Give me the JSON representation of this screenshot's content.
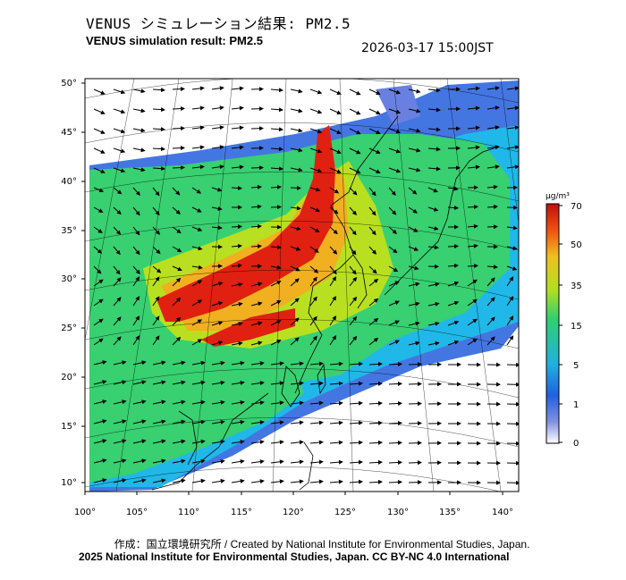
{
  "header": {
    "title_jp": "VENUS シミュレーション結果: PM2.5",
    "title_en": "VENUS simulation result: PM2.5",
    "timestamp": "2026-03-17 15:00JST"
  },
  "map": {
    "lat_labels": [
      "50°",
      "45°",
      "40°",
      "35°",
      "30°",
      "25°",
      "20°",
      "15°",
      "10°"
    ],
    "lon_labels": [
      "100°",
      "105°",
      "110°",
      "115°",
      "120°",
      "125°",
      "130°",
      "135°",
      "140°"
    ]
  },
  "colorbar": {
    "unit": "μg/m³",
    "tick_labels": [
      "70",
      "50",
      "35",
      "15",
      "5",
      "1",
      "0"
    ],
    "colors": [
      "#ffffff",
      "#3050d0",
      "#20b0e0",
      "#30d070",
      "#b0e020",
      "#f0c020",
      "#f05010",
      "#c01010"
    ]
  },
  "footer": {
    "credit_line1": "作成：国立環境研究所 / Created by National Institute for Environmental Studies, Japan.",
    "credit_line2": "2025 National Institute for Environmental Studies, Japan. CC BY-NC 4.0 International"
  }
}
